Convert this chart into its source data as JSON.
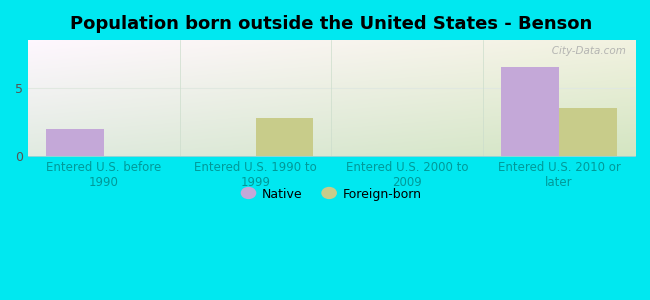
{
  "title": "Population born outside the United States - Benson",
  "categories": [
    "Entered U.S. before\n1990",
    "Entered U.S. 1990 to\n1999",
    "Entered U.S. 2000 to\n2009",
    "Entered U.S. 2010 or\nlater"
  ],
  "native_values": [
    2.0,
    0,
    0,
    6.5
  ],
  "foreign_values": [
    0,
    2.8,
    0,
    3.5
  ],
  "native_color": "#c4a8d8",
  "foreign_color": "#c8cc8a",
  "ylim": [
    0,
    8.5
  ],
  "yticks": [
    0,
    5
  ],
  "bar_width": 0.38,
  "outer_bg": "#00e8f0",
  "watermark": "   City-Data.com",
  "legend_native": "Native",
  "legend_foreign": "Foreign-born",
  "title_fontsize": 13,
  "axis_label_fontsize": 8.5,
  "tick_fontsize": 9,
  "xticklabel_color": "#009999",
  "yticklabel_color": "#555555",
  "grid_color": "#e0e8e0"
}
